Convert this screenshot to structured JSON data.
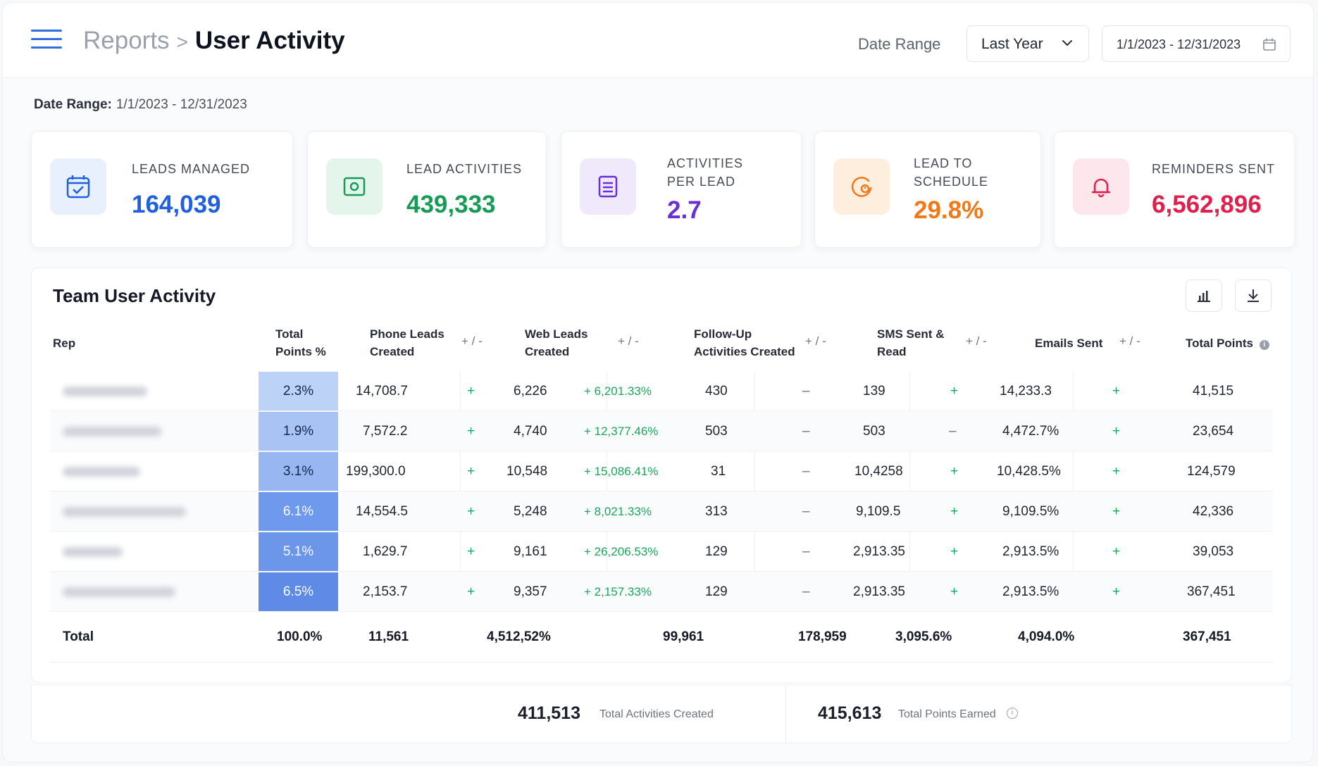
{
  "header": {
    "breadcrumb_parent": "Reports",
    "breadcrumb_sep": ">",
    "page_title": "User Activity",
    "date_range_label": "Date Range",
    "range_select": "Last Year",
    "range_dates": "1/1/2023 - 12/31/2023"
  },
  "range_line": {
    "label": "Date Range:",
    "value": "1/1/2023 - 12/31/2023"
  },
  "stats": [
    {
      "label": "LEADS MANAGED",
      "value": "164,039",
      "color": "#1f5fe0",
      "icon": "calendar-check-icon"
    },
    {
      "label": "LEAD ACTIVITIES",
      "value": "439,333",
      "color": "#169c56",
      "icon": "money-icon"
    },
    {
      "label": "ACTIVITIES PER LEAD",
      "value": "2.7",
      "color": "#6b2fd6",
      "icon": "document-icon"
    },
    {
      "label": "LEAD TO SCHEDULE",
      "value": "29.8%",
      "color": "#f07a1a",
      "icon": "clock-icon"
    },
    {
      "label": "REMINDERS SENT",
      "value": "6,562,896",
      "color": "#e0204f",
      "icon": "bell-icon"
    }
  ],
  "table": {
    "title": "Team User Activity",
    "headers": {
      "rep": "Rep",
      "total_points_pct": "Total Points %",
      "phone": "Phone Leads Created",
      "web": "Web Leads Created",
      "followup": "Follow-Up Activities Created",
      "sms": "SMS Sent & Read",
      "emails": "Emails Sent",
      "total_points": "Total Points",
      "plus_minus": "+ / -"
    },
    "rows": [
      {
        "pct": "2.3%",
        "phone": "14,708.7",
        "phone_pm": "+",
        "web": "6,226",
        "web_pm": "+ 6,201.33%",
        "fu": "430",
        "fu_pm": "–",
        "sms": "139",
        "sms_pm": "+",
        "email": "14,233.3",
        "email_pm": "+",
        "points": "41,515"
      },
      {
        "pct": "1.9%",
        "phone": "7,572.2",
        "phone_pm": "+",
        "web": "4,740",
        "web_pm": "+ 12,377.46%",
        "fu": "503",
        "fu_pm": "–",
        "sms": "503",
        "sms_pm": "–",
        "email": "4,472.7%",
        "email_pm": "+",
        "points": "23,654"
      },
      {
        "pct": "3.1%",
        "phone": "199,300.0",
        "phone_pm": "+",
        "web": "10,548",
        "web_pm": "+ 15,086.41%",
        "fu": "31",
        "fu_pm": "–",
        "sms": "10,4258",
        "sms_pm": "+",
        "email": "10,428.5%",
        "email_pm": "+",
        "points": "124,579"
      },
      {
        "pct": "6.1%",
        "phone": "14,554.5",
        "phone_pm": "+",
        "web": "5,248",
        "web_pm": "+ 8,021.33%",
        "fu": "313",
        "fu_pm": "–",
        "sms": "9,109.5",
        "sms_pm": "+",
        "email": "9,109.5%",
        "email_pm": "+",
        "points": "42,336"
      },
      {
        "pct": "5.1%",
        "phone": "1,629.7",
        "phone_pm": "+",
        "web": "9,161",
        "web_pm": "+ 26,206.53%",
        "fu": "129",
        "fu_pm": "–",
        "sms": "2,913.35",
        "sms_pm": "+",
        "email": "2,913.5%",
        "email_pm": "+",
        "points": "39,053"
      },
      {
        "pct": "6.5%",
        "phone": "2,153.7",
        "phone_pm": "+",
        "web": "9,357",
        "web_pm": "+ 2,157.33%",
        "fu": "129",
        "fu_pm": "–",
        "sms": "2,913.35",
        "sms_pm": "+",
        "email": "2,913.5%",
        "email_pm": "+",
        "points": "367,451"
      }
    ],
    "pct_shades": [
      "#bcd3f7",
      "#a9c4f4",
      "#98b7f2",
      "#6f99ec",
      "#6c96ea",
      "#5f8be6"
    ],
    "total": {
      "label": "Total",
      "pct": "100.0%",
      "phone": "11,561",
      "web": "4,512,52%",
      "fu": "99,961",
      "sms": "178,959",
      "sms2": "3,095.6%",
      "email": "4,094.0%",
      "points": "367,451"
    }
  },
  "footer": {
    "activities_value": "411,513",
    "activities_label": "Total Activities Created",
    "points_value": "415,613",
    "points_label": "Total Points Earned"
  }
}
